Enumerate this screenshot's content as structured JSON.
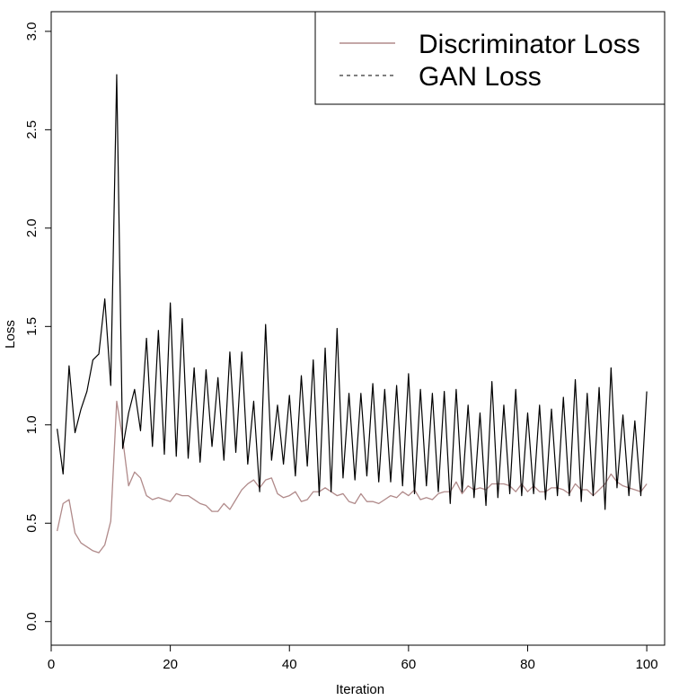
{
  "chart_data": {
    "type": "line",
    "title": "",
    "xlabel": "Iteration",
    "ylabel": "Loss",
    "xlim": [
      0,
      103
    ],
    "ylim": [
      -0.12,
      3.1
    ],
    "xticks": [
      0,
      20,
      40,
      60,
      80,
      100
    ],
    "yticks": [
      0.0,
      0.5,
      1.0,
      1.5,
      2.0,
      2.5,
      3.0
    ],
    "xtick_labels": [
      "0",
      "20",
      "40",
      "60",
      "80",
      "100"
    ],
    "ytick_labels": [
      "0.0",
      "0.5",
      "1.0",
      "1.5",
      "2.0",
      "2.5",
      "3.0"
    ],
    "grid": false,
    "legend_position": "top-right",
    "x": [
      1,
      2,
      3,
      4,
      5,
      6,
      7,
      8,
      9,
      10,
      11,
      12,
      13,
      14,
      15,
      16,
      17,
      18,
      19,
      20,
      21,
      22,
      23,
      24,
      25,
      26,
      27,
      28,
      29,
      30,
      31,
      32,
      33,
      34,
      35,
      36,
      37,
      38,
      39,
      40,
      41,
      42,
      43,
      44,
      45,
      46,
      47,
      48,
      49,
      50,
      51,
      52,
      53,
      54,
      55,
      56,
      57,
      58,
      59,
      60,
      61,
      62,
      63,
      64,
      65,
      66,
      67,
      68,
      69,
      70,
      71,
      72,
      73,
      74,
      75,
      76,
      77,
      78,
      79,
      80,
      81,
      82,
      83,
      84,
      85,
      86,
      87,
      88,
      89,
      90,
      91,
      92,
      93,
      94,
      95,
      96,
      97,
      98,
      99,
      100
    ],
    "series": [
      {
        "name": "Discriminator Loss",
        "color": "#b08a8a",
        "style": "solid",
        "values": [
          0.46,
          0.6,
          0.62,
          0.45,
          0.4,
          0.38,
          0.36,
          0.35,
          0.39,
          0.51,
          1.12,
          0.93,
          0.69,
          0.76,
          0.73,
          0.64,
          0.62,
          0.63,
          0.62,
          0.61,
          0.65,
          0.64,
          0.64,
          0.62,
          0.6,
          0.59,
          0.56,
          0.56,
          0.6,
          0.57,
          0.62,
          0.67,
          0.7,
          0.72,
          0.68,
          0.72,
          0.73,
          0.65,
          0.63,
          0.64,
          0.66,
          0.61,
          0.62,
          0.66,
          0.66,
          0.68,
          0.66,
          0.64,
          0.65,
          0.61,
          0.6,
          0.65,
          0.61,
          0.61,
          0.6,
          0.62,
          0.64,
          0.63,
          0.66,
          0.64,
          0.67,
          0.62,
          0.63,
          0.62,
          0.65,
          0.66,
          0.66,
          0.71,
          0.65,
          0.69,
          0.67,
          0.68,
          0.67,
          0.7,
          0.7,
          0.7,
          0.69,
          0.66,
          0.7,
          0.66,
          0.69,
          0.66,
          0.66,
          0.68,
          0.68,
          0.67,
          0.65,
          0.7,
          0.67,
          0.67,
          0.64,
          0.67,
          0.7,
          0.75,
          0.71,
          0.69,
          0.68,
          0.67,
          0.66,
          0.7
        ]
      },
      {
        "name": "GAN Loss",
        "color": "#000000",
        "style": "dashed",
        "values": [
          0.98,
          0.75,
          1.3,
          0.96,
          1.08,
          1.17,
          1.33,
          1.36,
          1.64,
          1.2,
          2.78,
          0.88,
          1.06,
          1.18,
          0.97,
          1.44,
          0.89,
          1.48,
          0.85,
          1.62,
          0.84,
          1.54,
          0.83,
          1.29,
          0.81,
          1.28,
          0.89,
          1.24,
          0.82,
          1.37,
          0.86,
          1.37,
          0.8,
          1.12,
          0.66,
          1.51,
          0.82,
          1.1,
          0.8,
          1.15,
          0.74,
          1.25,
          0.79,
          1.33,
          0.64,
          1.39,
          0.66,
          1.49,
          0.73,
          1.16,
          0.72,
          1.16,
          0.74,
          1.21,
          0.71,
          1.18,
          0.71,
          1.2,
          0.69,
          1.26,
          0.65,
          1.18,
          0.69,
          1.16,
          0.66,
          1.17,
          0.6,
          1.18,
          0.66,
          1.1,
          0.63,
          1.06,
          0.59,
          1.22,
          0.63,
          1.1,
          0.65,
          1.18,
          0.64,
          1.06,
          0.65,
          1.1,
          0.62,
          1.08,
          0.64,
          1.14,
          0.64,
          1.23,
          0.61,
          1.16,
          0.64,
          1.19,
          0.57,
          1.29,
          0.68,
          1.05,
          0.64,
          1.02,
          0.64,
          1.17
        ]
      }
    ]
  }
}
